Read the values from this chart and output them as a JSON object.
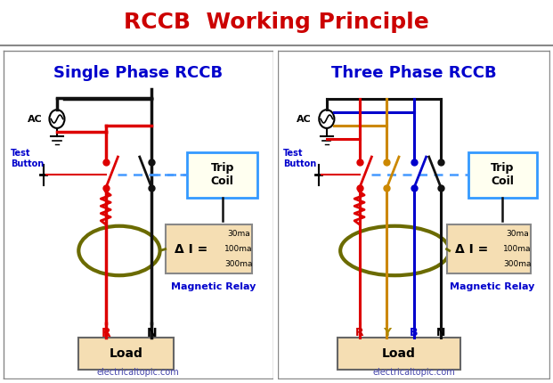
{
  "title": "RCCB  Working Principle",
  "title_color": "#CC0000",
  "title_fontsize": 18,
  "bg_color": "#FFFFFF",
  "left_bg": "#C8C8D8",
  "right_bg": "#B8D4E8",
  "left_title": "Single Phase RCCB",
  "right_title": "Three Phase RCCB",
  "subtitle_color": "#0000CC",
  "subtitle_fontsize": 13,
  "footer": "electricaltopic.com",
  "footer_color": "#4444AA",
  "trip_coil_bg": "#FFFFF0",
  "trip_coil_border": "#3399FF",
  "relay_bg": "#F5DEB3",
  "relay_border": "#888888",
  "load_bg": "#F5DEB3",
  "load_border": "#666666",
  "wire_red": "#DD0000",
  "wire_black": "#111111",
  "wire_blue": "#0000CC",
  "wire_yellow": "#CC8800",
  "wire_olive": "#6B6B00",
  "dashed_blue": "#4499FF",
  "label_blue": "#0000CC",
  "label_red": "#CC0000",
  "label_yellow": "#AA8800",
  "magnetic_relay_label": "Magnetic Relay",
  "delta_i_text": "Δ I =",
  "border_color": "#888888"
}
